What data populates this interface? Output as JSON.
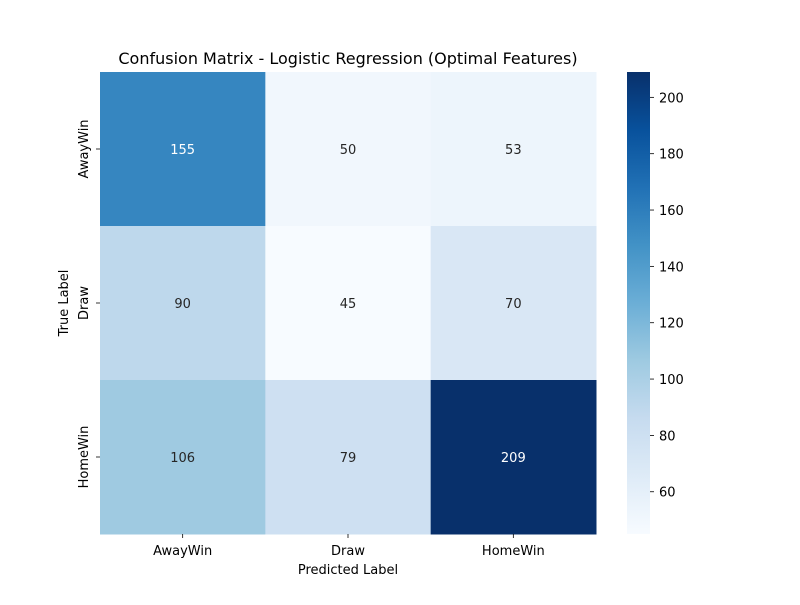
{
  "chart_data": {
    "type": "heatmap",
    "title": "Confusion Matrix - Logistic Regression (Optimal Features)",
    "xlabel": "Predicted Label",
    "ylabel": "True Label",
    "x_categories": [
      "AwayWin",
      "Draw",
      "HomeWin"
    ],
    "y_categories": [
      "AwayWin",
      "Draw",
      "HomeWin"
    ],
    "values": [
      [
        155,
        50,
        53
      ],
      [
        90,
        45,
        70
      ],
      [
        106,
        79,
        209
      ]
    ],
    "colormap": "Blues",
    "vmin": 45,
    "vmax": 209,
    "colorbar": {
      "ticks": [
        60,
        80,
        100,
        120,
        140,
        160,
        180,
        200
      ],
      "tick_labels": [
        "60",
        "80",
        "100",
        "120",
        "140",
        "160",
        "180",
        "200"
      ]
    },
    "annotations": true
  }
}
